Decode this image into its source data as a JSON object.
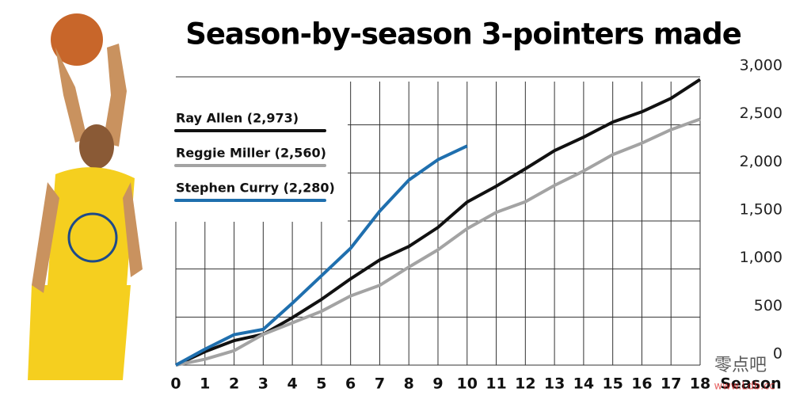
{
  "chart_data": {
    "type": "line",
    "title": "Season-by-season 3-pointers made",
    "x_label": "Season",
    "x": [
      0,
      1,
      2,
      3,
      4,
      5,
      6,
      7,
      8,
      9,
      10,
      11,
      12,
      13,
      14,
      15,
      16,
      17,
      18
    ],
    "xlim": [
      0,
      18
    ],
    "xticks": [
      0,
      1,
      2,
      3,
      4,
      5,
      6,
      7,
      8,
      9,
      10,
      11,
      12,
      13,
      14,
      15,
      16,
      17,
      18
    ],
    "ylim": [
      0,
      3000
    ],
    "yticks": [
      0,
      500,
      {
        "value": 1000,
        "label": "1,000"
      },
      {
        "value": 1500,
        "label": "1,500"
      },
      {
        "value": 2000,
        "label": "2,000"
      },
      {
        "value": 2500,
        "label": "2,500"
      },
      {
        "value": 3000,
        "label": "3,000"
      }
    ],
    "grid": true,
    "series": [
      {
        "name": "Ray Allen (2,973)",
        "color": "#111111",
        "values": [
          0,
          140,
          255,
          321,
          494,
          684,
          898,
          1095,
          1235,
          1433,
          1697,
          1862,
          2043,
          2232,
          2372,
          2529,
          2636,
          2776,
          2973
        ]
      },
      {
        "name": "Reggie Miller (2,560)",
        "color": "#a3a3a3",
        "values": [
          0,
          61,
          150,
          320,
          440,
          560,
          720,
          830,
          1020,
          1200,
          1420,
          1590,
          1700,
          1870,
          2020,
          2190,
          2310,
          2450,
          2560
        ]
      },
      {
        "name": "Stephen Curry (2,280)",
        "color": "#1f6fae",
        "values": [
          0,
          166,
          317,
          372,
          644,
          930,
          1216,
          1602,
          1926,
          2138,
          2280,
          null,
          null,
          null,
          null,
          null,
          null,
          null,
          null
        ]
      }
    ],
    "watermark": [
      "零点吧",
      "www.Ldb.cc"
    ]
  }
}
